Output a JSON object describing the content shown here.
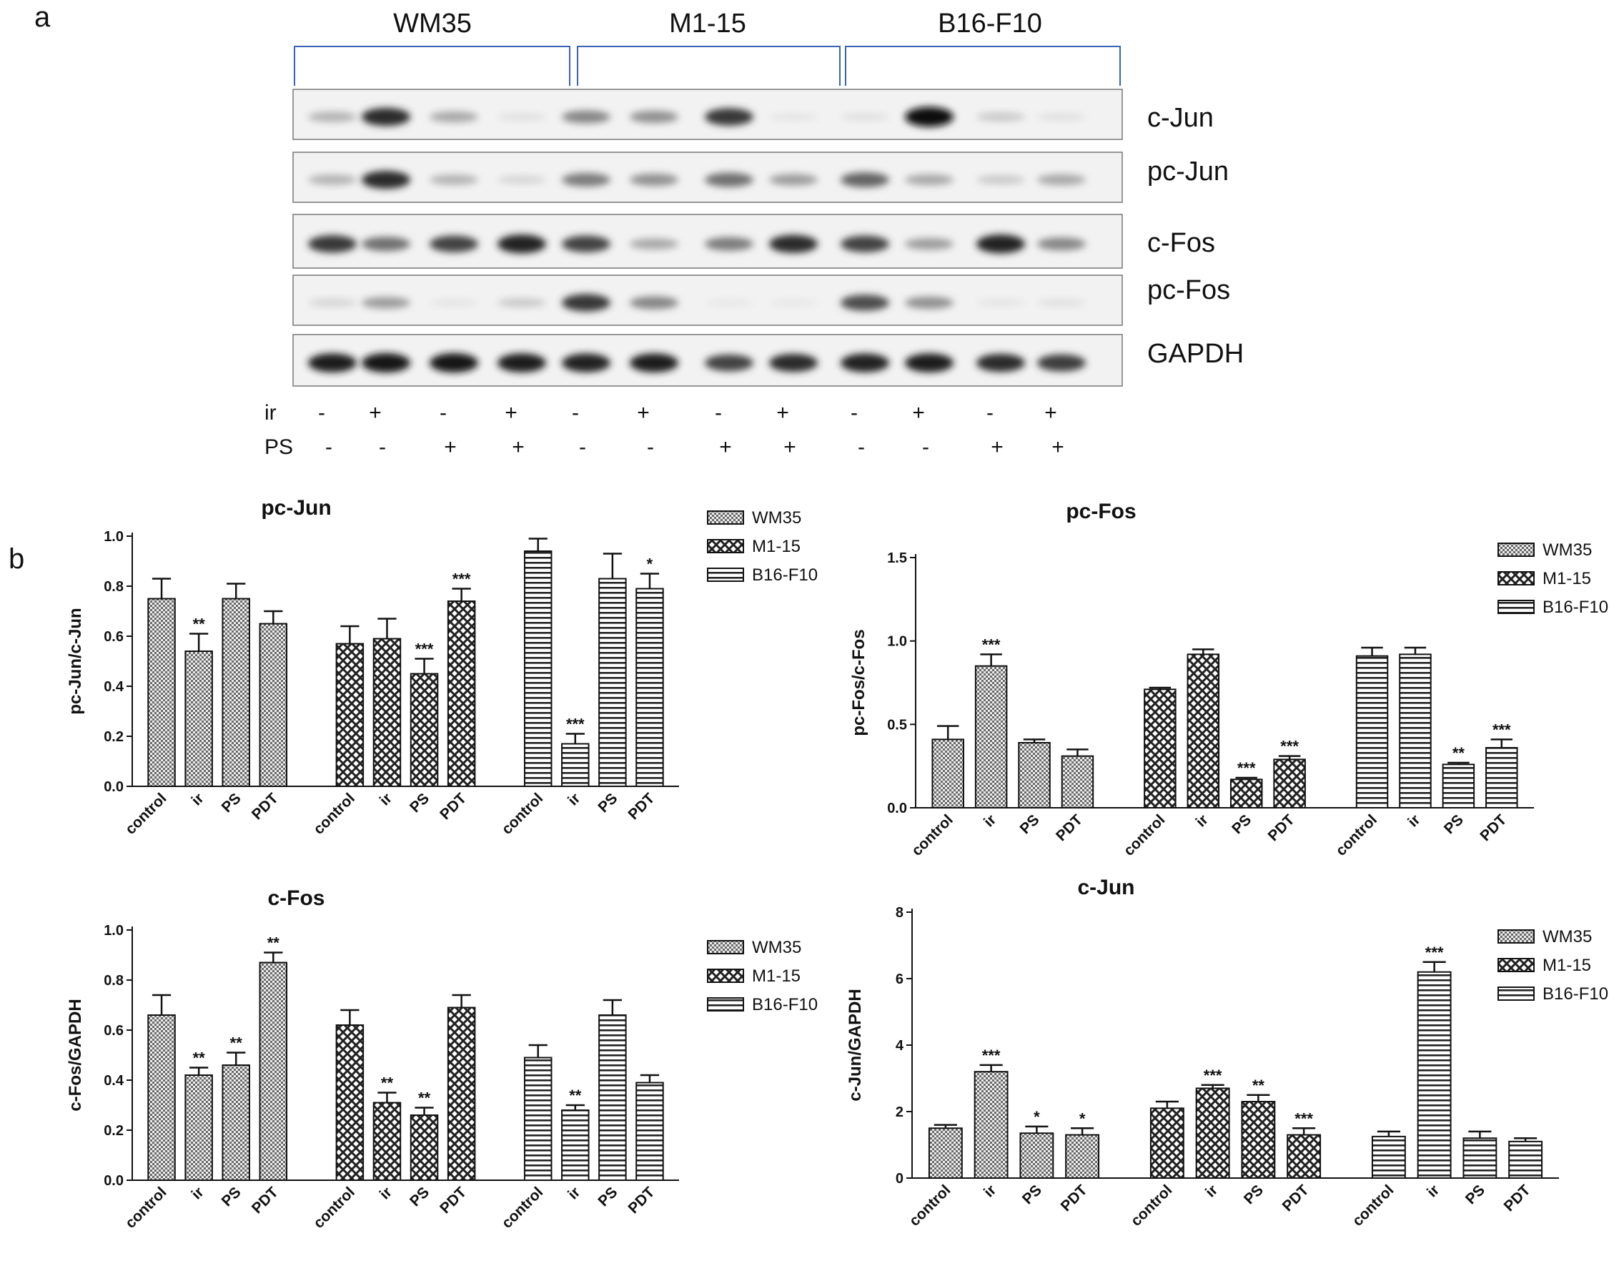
{
  "panel_labels": {
    "a": "a",
    "b": "b"
  },
  "blot": {
    "cell_lines": [
      "WM35",
      "M1-15",
      "B16-F10"
    ],
    "proteins": [
      "c-Jun",
      "pc-Jun",
      "c-Fos",
      "pc-Fos",
      "GAPDH"
    ],
    "treatments": [
      {
        "label": "ir",
        "values": [
          "-",
          "+",
          "-",
          "+",
          "-",
          "+",
          "-",
          "+",
          "-",
          "+",
          "-",
          "+"
        ]
      },
      {
        "label": "PS",
        "values": [
          "-",
          "-",
          "+",
          "+",
          "-",
          "-",
          "+",
          "+",
          "-",
          "-",
          "+",
          "+"
        ]
      }
    ],
    "band_intensity": {
      "c-Jun": [
        0.25,
        0.85,
        0.3,
        0.05,
        0.45,
        0.4,
        0.8,
        0.03,
        0.05,
        0.98,
        0.15,
        0.05
      ],
      "pc-Jun": [
        0.25,
        0.85,
        0.25,
        0.1,
        0.5,
        0.4,
        0.55,
        0.35,
        0.6,
        0.3,
        0.15,
        0.3
      ],
      "c-Fos": [
        0.8,
        0.55,
        0.75,
        0.9,
        0.75,
        0.3,
        0.5,
        0.85,
        0.75,
        0.35,
        0.9,
        0.45
      ],
      "pc-Fos": [
        0.1,
        0.35,
        0.03,
        0.15,
        0.8,
        0.45,
        0.02,
        0.02,
        0.7,
        0.4,
        0.03,
        0.05
      ],
      "GAPDH": [
        0.92,
        0.95,
        0.95,
        0.92,
        0.9,
        0.92,
        0.75,
        0.85,
        0.9,
        0.92,
        0.85,
        0.78
      ]
    }
  },
  "legend": {
    "series": [
      "WM35",
      "M1-15",
      "B16-F10"
    ]
  },
  "chart_data": [
    {
      "type": "bar",
      "title": "pc-Jun",
      "ylabel": "pc-Jun/c-Jun",
      "ylim": [
        0,
        1.0
      ],
      "yticks": [
        "0.0",
        "0.2",
        "0.4",
        "0.6",
        "0.8",
        "1.0"
      ],
      "categories": [
        "control",
        "ir",
        "PS",
        "PDT"
      ],
      "legend": "top-right",
      "series": [
        {
          "name": "WM35",
          "values": [
            0.75,
            0.54,
            0.75,
            0.65
          ],
          "errors": [
            0.08,
            0.07,
            0.06,
            0.05
          ],
          "sig": [
            "",
            "**",
            "",
            ""
          ]
        },
        {
          "name": "M1-15",
          "values": [
            0.57,
            0.59,
            0.45,
            0.74
          ],
          "errors": [
            0.07,
            0.08,
            0.06,
            0.05
          ],
          "sig": [
            "",
            "",
            "***",
            "***"
          ]
        },
        {
          "name": "B16-F10",
          "values": [
            0.94,
            0.17,
            0.83,
            0.79
          ],
          "errors": [
            0.05,
            0.04,
            0.1,
            0.06
          ],
          "sig": [
            "",
            "***",
            "",
            "*"
          ]
        }
      ]
    },
    {
      "type": "bar",
      "title": "pc-Fos",
      "ylabel": "pc-Fos/c-Fos",
      "ylim": [
        0,
        1.5
      ],
      "yticks": [
        "0.0",
        "0.5",
        "1.0",
        "1.5"
      ],
      "categories": [
        "control",
        "ir",
        "PS",
        "PDT"
      ],
      "legend": "top-right",
      "series": [
        {
          "name": "WM35",
          "values": [
            0.41,
            0.85,
            0.39,
            0.31
          ],
          "errors": [
            0.08,
            0.07,
            0.02,
            0.04
          ],
          "sig": [
            "",
            "***",
            "",
            ""
          ]
        },
        {
          "name": "M1-15",
          "values": [
            0.71,
            0.92,
            0.17,
            0.29
          ],
          "errors": [
            0.01,
            0.03,
            0.01,
            0.02
          ],
          "sig": [
            "",
            "",
            "***",
            "***"
          ]
        },
        {
          "name": "B16-F10",
          "values": [
            0.91,
            0.92,
            0.26,
            0.36
          ],
          "errors": [
            0.05,
            0.04,
            0.01,
            0.05
          ],
          "sig": [
            "",
            "",
            "**",
            "***"
          ]
        }
      ]
    },
    {
      "type": "bar",
      "title": "c-Fos",
      "ylabel": "c-Fos/GAPDH",
      "ylim": [
        0,
        1.0
      ],
      "yticks": [
        "0.0",
        "0.2",
        "0.4",
        "0.6",
        "0.8",
        "1.0"
      ],
      "categories": [
        "control",
        "ir",
        "PS",
        "PDT"
      ],
      "legend": "top-right",
      "series": [
        {
          "name": "WM35",
          "values": [
            0.66,
            0.42,
            0.46,
            0.87
          ],
          "errors": [
            0.08,
            0.03,
            0.05,
            0.04
          ],
          "sig": [
            "",
            "**",
            "**",
            "**"
          ]
        },
        {
          "name": "M1-15",
          "values": [
            0.62,
            0.31,
            0.26,
            0.69
          ],
          "errors": [
            0.06,
            0.04,
            0.03,
            0.05
          ],
          "sig": [
            "",
            "**",
            "**",
            ""
          ]
        },
        {
          "name": "B16-F10",
          "values": [
            0.49,
            0.28,
            0.66,
            0.39
          ],
          "errors": [
            0.05,
            0.02,
            0.06,
            0.03
          ],
          "sig": [
            "",
            "**",
            "",
            ""
          ]
        }
      ]
    },
    {
      "type": "bar",
      "title": "c-Jun",
      "ylabel": "c-Jun/GAPDH",
      "ylim": [
        0,
        8
      ],
      "yticks": [
        "0",
        "2",
        "4",
        "6",
        "8"
      ],
      "categories": [
        "control",
        "ir",
        "PS",
        "PDT"
      ],
      "legend": "top-right",
      "series": [
        {
          "name": "WM35",
          "values": [
            1.5,
            3.2,
            1.35,
            1.3
          ],
          "errors": [
            0.1,
            0.2,
            0.2,
            0.2
          ],
          "sig": [
            "",
            "***",
            "*",
            "*"
          ]
        },
        {
          "name": "M1-15",
          "values": [
            2.1,
            2.7,
            2.3,
            1.3
          ],
          "errors": [
            0.2,
            0.1,
            0.2,
            0.2
          ],
          "sig": [
            "",
            "***",
            "**",
            "***"
          ]
        },
        {
          "name": "B16-F10",
          "values": [
            1.25,
            6.2,
            1.2,
            1.1
          ],
          "errors": [
            0.15,
            0.3,
            0.2,
            0.1
          ],
          "sig": [
            "",
            "***",
            "",
            ""
          ]
        }
      ]
    }
  ]
}
